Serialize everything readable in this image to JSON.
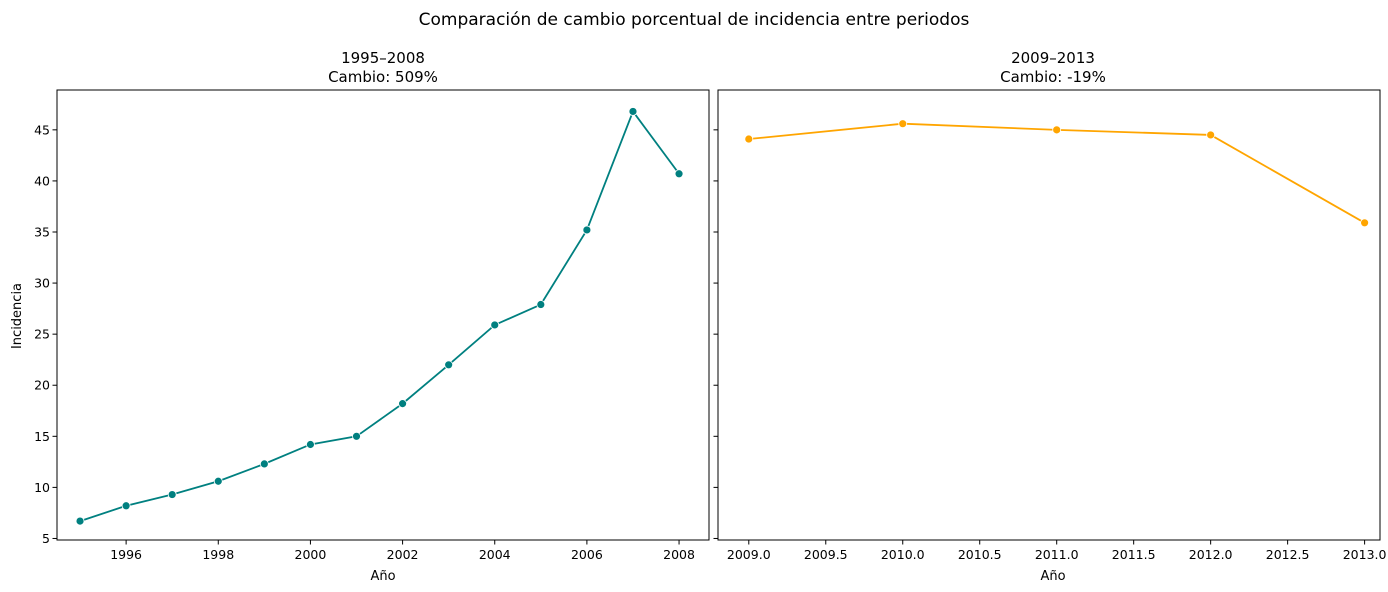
{
  "figure": {
    "title": "Comparación de cambio porcentual de incidencia entre periodos"
  },
  "chart_data": [
    {
      "type": "line",
      "title_line1": "1995–2008",
      "title_line2": "Cambio: 509%",
      "xlabel": "Año",
      "ylabel": "Incidencia",
      "xlim": [
        1994.5,
        2008.65
      ],
      "ylim": [
        4.85,
        48.9
      ],
      "xticks": [
        1996,
        1998,
        2000,
        2002,
        2004,
        2006,
        2008
      ],
      "xtick_labels": [
        "1996",
        "1998",
        "2000",
        "2002",
        "2004",
        "2006",
        "2008"
      ],
      "yticks": [
        5,
        10,
        15,
        20,
        25,
        30,
        35,
        40,
        45
      ],
      "ytick_labels": [
        "5",
        "10",
        "15",
        "20",
        "25",
        "30",
        "35",
        "40",
        "45"
      ],
      "series": [
        {
          "color": "#008080",
          "x": [
            1995,
            1996,
            1997,
            1998,
            1999,
            2000,
            2001,
            2002,
            2003,
            2004,
            2005,
            2006,
            2007,
            2008
          ],
          "y": [
            6.7,
            8.2,
            9.3,
            10.6,
            12.3,
            14.2,
            15.0,
            18.2,
            22.0,
            25.9,
            27.9,
            35.2,
            46.8,
            40.7
          ]
        }
      ]
    },
    {
      "type": "line",
      "title_line1": "2009–2013",
      "title_line2": "Cambio: -19%",
      "xlabel": "Año",
      "ylabel": "",
      "xlim": [
        2008.8,
        2013.1
      ],
      "ylim": [
        4.85,
        48.9
      ],
      "xticks": [
        2009.0,
        2009.5,
        2010.0,
        2010.5,
        2011.0,
        2011.5,
        2012.0,
        2012.5,
        2013.0
      ],
      "xtick_labels": [
        "2009.0",
        "2009.5",
        "2010.0",
        "2010.5",
        "2011.0",
        "2011.5",
        "2012.0",
        "2012.5",
        "2013.0"
      ],
      "yticks": [
        5,
        10,
        15,
        20,
        25,
        30,
        35,
        40,
        45
      ],
      "ytick_labels": [],
      "series": [
        {
          "color": "#FFA500",
          "x": [
            2009,
            2010,
            2011,
            2012,
            2013
          ],
          "y": [
            44.1,
            45.6,
            45.0,
            44.5,
            35.9
          ]
        }
      ]
    }
  ]
}
